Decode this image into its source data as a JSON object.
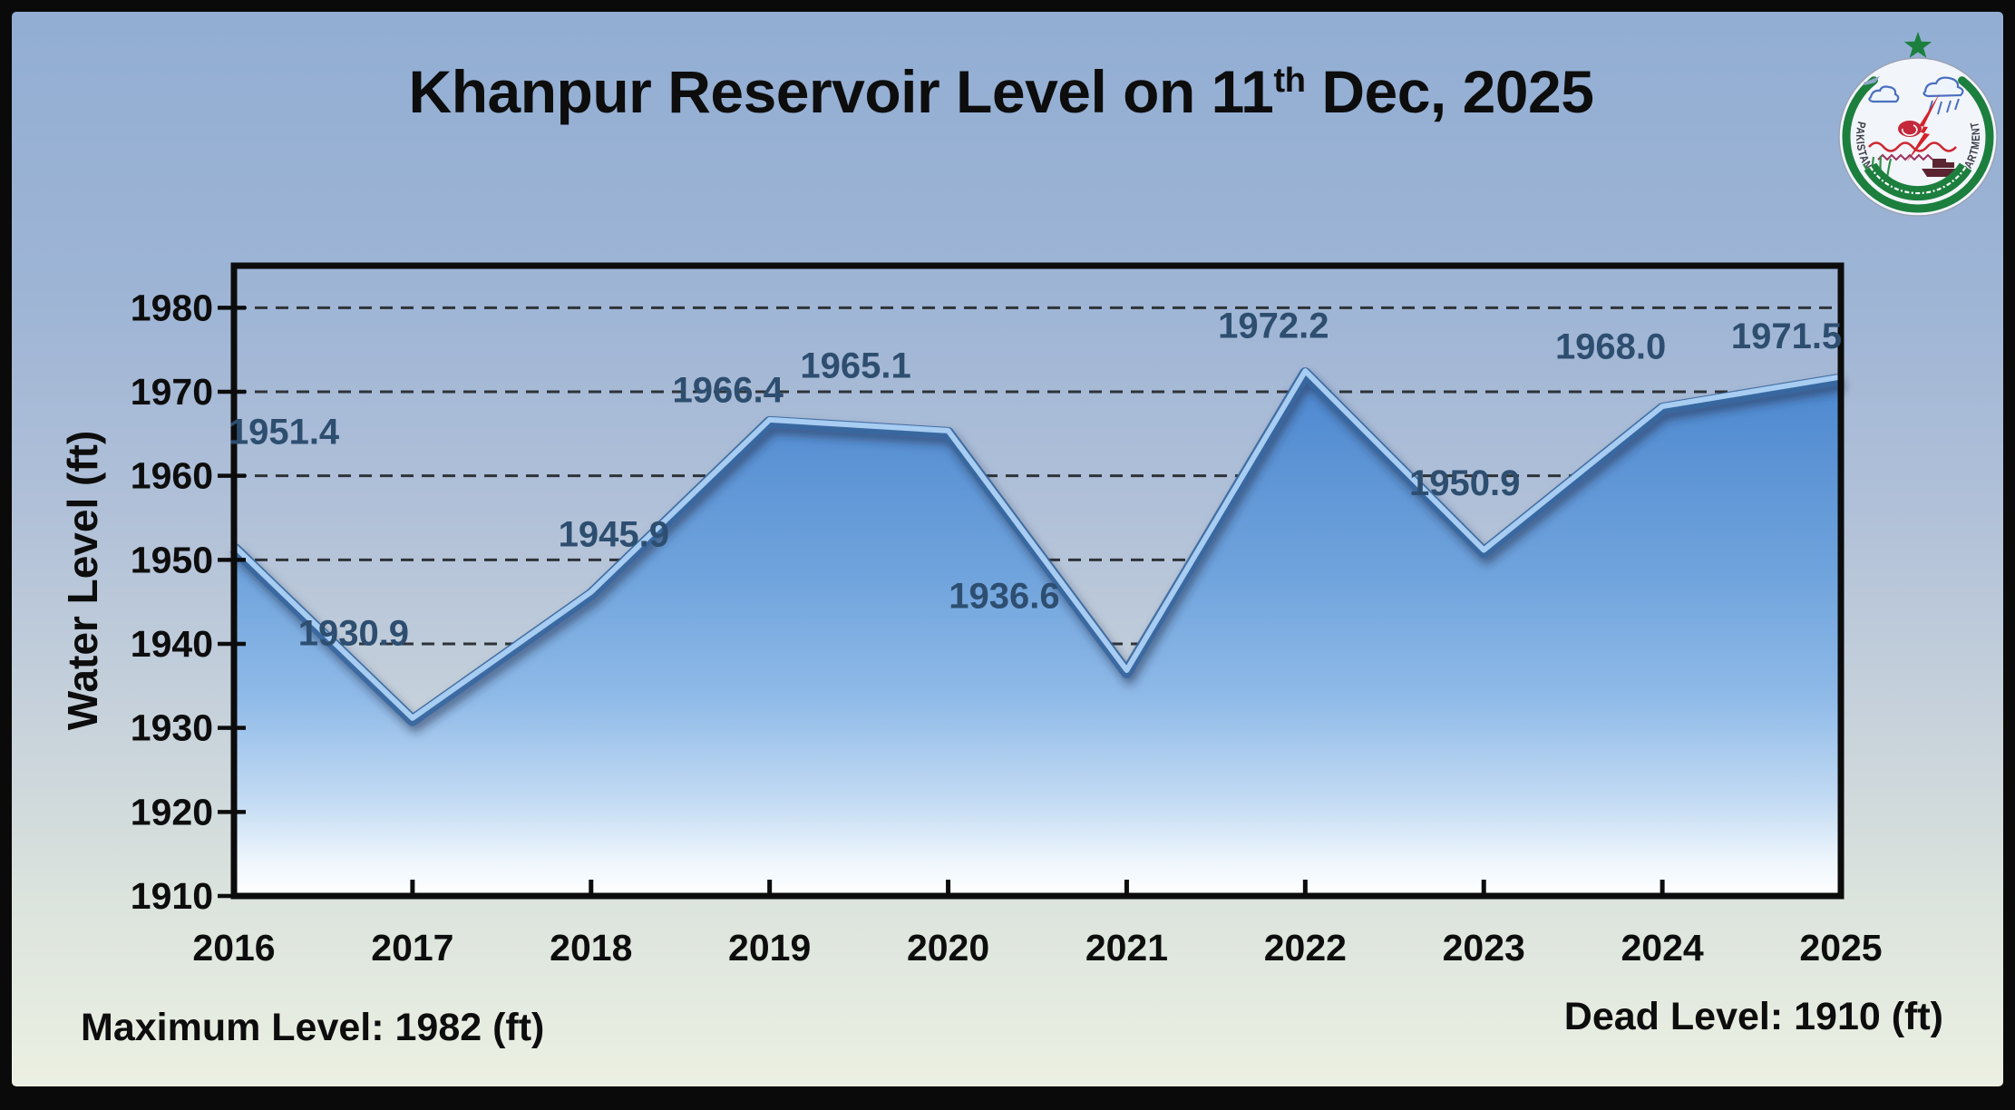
{
  "title": {
    "text_before_sup": "Khanpur Reservoir Level on 11",
    "superscript": "th",
    "text_after_sup": " Dec, 2025"
  },
  "logo": {
    "name": "Pakistan Meteorological Department emblem",
    "arc_text": "PAKISTAN METEOROLOGICAL DEPARTMENT"
  },
  "chart_data": {
    "type": "area",
    "title": "Khanpur Reservoir Level on 11th Dec, 2025",
    "categories": [
      "2016",
      "2017",
      "2018",
      "2019",
      "2020",
      "2021",
      "2022",
      "2023",
      "2024",
      "2025"
    ],
    "values": [
      1951.4,
      1930.9,
      1945.9,
      1966.4,
      1965.1,
      1936.6,
      1972.2,
      1950.9,
      1968.0,
      1971.5
    ],
    "data_labels": [
      "1951.4",
      "1930.9",
      "1945.9",
      "1966.4",
      "1965.1",
      "1936.6",
      "1972.2",
      "1950.9",
      "1968.0",
      "1971.5"
    ],
    "xlabel": "",
    "ylabel": "Water Level (ft)",
    "ylim": [
      1910,
      1985
    ],
    "yticks": [
      1910,
      1920,
      1930,
      1940,
      1950,
      1960,
      1970,
      1980
    ],
    "grid": "horizontal-dashed",
    "legend": "none",
    "colors": {
      "area_fill_top": "#4C87CF",
      "area_fill_bottom": "#FFFFFF",
      "line_highlight": "#A8CDF2",
      "line_shadow": "#38669F",
      "data_label": "#2E4E70",
      "gridline": "#2E3338",
      "axis": "#0C0C0C"
    }
  },
  "footer": {
    "maximum_level": "Maximum Level: 1982 (ft)",
    "dead_level": "Dead Level: 1910 (ft)"
  },
  "background": {
    "top": "#92AED3",
    "bottom": "#EBF0E2",
    "frame": "#0A0A0A"
  }
}
